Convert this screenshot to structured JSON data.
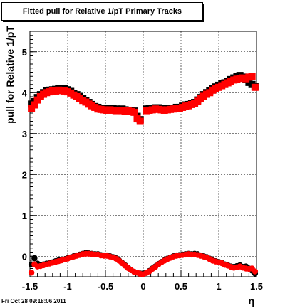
{
  "chart_data": {
    "type": "scatter",
    "title": "Fitted pull for Relative 1/pT  Primary Tracks",
    "xlabel": "η",
    "ylabel": "pull for Relative 1/pT",
    "xlim": [
      -1.5,
      1.5
    ],
    "ylim": [
      -0.5,
      5.5
    ],
    "x_ticks": [
      "-1.5",
      "-1",
      "-0.5",
      "0",
      "0.5",
      "1",
      "1.5"
    ],
    "y_ticks": [
      "0",
      "1",
      "2",
      "3",
      "4",
      "5"
    ],
    "grid": true,
    "footer": "Fri Oct 28 09:18:06 2011",
    "series": [
      {
        "marker": "square",
        "color": "#000000",
        "x": [
          -1.48,
          -1.44,
          -1.4,
          -1.36,
          -1.32,
          -1.28,
          -1.24,
          -1.2,
          -1.16,
          -1.12,
          -1.08,
          -1.04,
          -1.0,
          -0.96,
          -0.92,
          -0.88,
          -0.84,
          -0.8,
          -0.76,
          -0.72,
          -0.68,
          -0.64,
          -0.6,
          -0.56,
          -0.52,
          -0.48,
          -0.44,
          -0.4,
          -0.36,
          -0.32,
          -0.28,
          -0.24,
          -0.2,
          -0.16,
          -0.12,
          -0.08,
          -0.04,
          0.04,
          0.08,
          0.12,
          0.16,
          0.2,
          0.24,
          0.28,
          0.32,
          0.36,
          0.4,
          0.44,
          0.48,
          0.52,
          0.56,
          0.6,
          0.64,
          0.68,
          0.72,
          0.76,
          0.8,
          0.84,
          0.88,
          0.92,
          0.96,
          1.0,
          1.04,
          1.08,
          1.12,
          1.16,
          1.2,
          1.24,
          1.28,
          1.32,
          1.36,
          1.4,
          1.44,
          1.48
        ],
        "y": [
          3.72,
          3.78,
          3.88,
          3.95,
          4.0,
          4.04,
          4.06,
          4.07,
          4.08,
          4.1,
          4.09,
          4.1,
          4.07,
          4.03,
          3.98,
          3.95,
          3.9,
          3.85,
          3.8,
          3.76,
          3.71,
          3.66,
          3.64,
          3.62,
          3.6,
          3.61,
          3.6,
          3.61,
          3.6,
          3.59,
          3.6,
          3.58,
          3.57,
          3.56,
          3.55,
          3.42,
          3.34,
          3.6,
          3.61,
          3.61,
          3.63,
          3.63,
          3.62,
          3.61,
          3.61,
          3.62,
          3.62,
          3.64,
          3.64,
          3.67,
          3.7,
          3.71,
          3.74,
          3.76,
          3.82,
          3.88,
          3.95,
          4.0,
          4.04,
          4.1,
          4.14,
          4.18,
          4.22,
          4.24,
          4.28,
          4.32,
          4.36,
          4.4,
          4.42,
          4.38,
          4.32,
          4.25,
          4.2,
          4.15
        ]
      },
      {
        "marker": "square",
        "color": "#ff0000",
        "x": [
          -1.48,
          -1.44,
          -1.4,
          -1.36,
          -1.32,
          -1.28,
          -1.24,
          -1.2,
          -1.16,
          -1.12,
          -1.08,
          -1.04,
          -1.0,
          -0.96,
          -0.92,
          -0.88,
          -0.84,
          -0.8,
          -0.76,
          -0.72,
          -0.68,
          -0.64,
          -0.6,
          -0.56,
          -0.52,
          -0.48,
          -0.44,
          -0.4,
          -0.36,
          -0.32,
          -0.28,
          -0.24,
          -0.2,
          -0.16,
          -0.12,
          -0.08,
          -0.04,
          0.04,
          0.08,
          0.12,
          0.16,
          0.2,
          0.24,
          0.28,
          0.32,
          0.36,
          0.4,
          0.44,
          0.48,
          0.52,
          0.56,
          0.6,
          0.64,
          0.68,
          0.72,
          0.76,
          0.8,
          0.84,
          0.88,
          0.92,
          0.96,
          1.0,
          1.04,
          1.08,
          1.12,
          1.16,
          1.2,
          1.24,
          1.28,
          1.32,
          1.36,
          1.4,
          1.44,
          1.48
        ],
        "y": [
          3.62,
          3.7,
          3.82,
          3.9,
          3.96,
          4.0,
          4.02,
          4.04,
          4.04,
          4.06,
          4.05,
          4.04,
          4.02,
          3.99,
          3.94,
          3.9,
          3.86,
          3.81,
          3.77,
          3.72,
          3.68,
          3.64,
          3.6,
          3.59,
          3.58,
          3.57,
          3.58,
          3.57,
          3.56,
          3.57,
          3.56,
          3.55,
          3.56,
          3.54,
          3.52,
          3.36,
          3.3,
          3.56,
          3.57,
          3.58,
          3.6,
          3.59,
          3.58,
          3.57,
          3.58,
          3.59,
          3.6,
          3.61,
          3.62,
          3.64,
          3.67,
          3.68,
          3.71,
          3.73,
          3.79,
          3.85,
          3.91,
          3.96,
          4.0,
          4.06,
          4.1,
          4.13,
          4.17,
          4.2,
          4.24,
          4.28,
          4.31,
          4.33,
          4.35,
          4.36,
          4.34,
          4.38,
          4.4,
          4.13
        ]
      },
      {
        "marker": "circle",
        "color": "#000000",
        "x": [
          -1.48,
          -1.44,
          -1.4,
          -1.36,
          -1.32,
          -1.28,
          -1.24,
          -1.2,
          -1.16,
          -1.12,
          -1.08,
          -1.04,
          -1.0,
          -0.96,
          -0.92,
          -0.88,
          -0.84,
          -0.8,
          -0.76,
          -0.72,
          -0.68,
          -0.64,
          -0.6,
          -0.56,
          -0.52,
          -0.48,
          -0.44,
          -0.4,
          -0.36,
          -0.32,
          -0.28,
          -0.24,
          -0.2,
          -0.16,
          -0.12,
          -0.08,
          -0.04,
          0.0,
          0.04,
          0.08,
          0.12,
          0.16,
          0.2,
          0.24,
          0.28,
          0.32,
          0.36,
          0.4,
          0.44,
          0.48,
          0.52,
          0.56,
          0.6,
          0.64,
          0.68,
          0.72,
          0.76,
          0.8,
          0.84,
          0.88,
          0.92,
          0.96,
          1.0,
          1.04,
          1.08,
          1.12,
          1.16,
          1.2,
          1.24,
          1.28,
          1.32,
          1.36,
          1.4,
          1.44,
          1.48
        ],
        "y": [
          -0.2,
          -0.05,
          -0.18,
          -0.22,
          -0.2,
          -0.18,
          -0.17,
          -0.15,
          -0.12,
          -0.1,
          -0.09,
          -0.08,
          -0.05,
          -0.03,
          0.0,
          0.02,
          0.04,
          0.06,
          0.08,
          0.07,
          0.06,
          0.05,
          0.05,
          0.03,
          0.02,
          0.02,
          0.0,
          -0.02,
          -0.05,
          -0.1,
          -0.16,
          -0.22,
          -0.28,
          -0.34,
          -0.38,
          -0.4,
          -0.42,
          -0.42,
          -0.4,
          -0.36,
          -0.3,
          -0.25,
          -0.19,
          -0.14,
          -0.1,
          -0.06,
          -0.03,
          0.0,
          0.02,
          0.03,
          0.04,
          0.05,
          0.06,
          0.05,
          0.06,
          0.05,
          0.02,
          0.0,
          -0.02,
          -0.06,
          -0.1,
          -0.12,
          -0.14,
          -0.16,
          -0.2,
          -0.22,
          -0.25,
          -0.26,
          -0.24,
          -0.22,
          -0.26,
          -0.25,
          -0.3,
          -0.35,
          -0.42
        ]
      },
      {
        "marker": "circle",
        "color": "#ff0000",
        "x": [
          -1.48,
          -1.44,
          -1.4,
          -1.36,
          -1.32,
          -1.28,
          -1.24,
          -1.2,
          -1.16,
          -1.12,
          -1.08,
          -1.04,
          -1.0,
          -0.96,
          -0.92,
          -0.88,
          -0.84,
          -0.8,
          -0.76,
          -0.72,
          -0.68,
          -0.64,
          -0.6,
          -0.56,
          -0.52,
          -0.48,
          -0.44,
          -0.4,
          -0.36,
          -0.32,
          -0.28,
          -0.24,
          -0.2,
          -0.16,
          -0.12,
          -0.08,
          -0.04,
          0.0,
          0.04,
          0.08,
          0.12,
          0.16,
          0.2,
          0.24,
          0.28,
          0.32,
          0.36,
          0.4,
          0.44,
          0.48,
          0.52,
          0.56,
          0.6,
          0.64,
          0.68,
          0.72,
          0.76,
          0.8,
          0.84,
          0.88,
          0.92,
          0.96,
          1.0,
          1.04,
          1.08,
          1.12,
          1.16,
          1.2,
          1.24,
          1.28,
          1.32,
          1.36,
          1.4,
          1.44,
          1.48
        ],
        "y": [
          -0.4,
          -0.2,
          -0.25,
          -0.24,
          -0.22,
          -0.2,
          -0.18,
          -0.16,
          -0.14,
          -0.12,
          -0.1,
          -0.08,
          -0.06,
          -0.03,
          -0.01,
          0.01,
          0.03,
          0.05,
          0.06,
          0.06,
          0.05,
          0.04,
          0.04,
          0.02,
          0.01,
          0.01,
          -0.01,
          -0.03,
          -0.06,
          -0.11,
          -0.17,
          -0.23,
          -0.29,
          -0.34,
          -0.38,
          -0.4,
          -0.43,
          -0.44,
          -0.41,
          -0.37,
          -0.31,
          -0.26,
          -0.2,
          -0.15,
          -0.11,
          -0.07,
          -0.04,
          -0.01,
          0.01,
          0.02,
          0.03,
          0.04,
          0.05,
          0.04,
          0.04,
          0.03,
          0.01,
          -0.01,
          -0.03,
          -0.07,
          -0.11,
          -0.13,
          -0.15,
          -0.17,
          -0.21,
          -0.23,
          -0.26,
          -0.28,
          -0.27,
          -0.25,
          -0.28,
          -0.3,
          -0.31,
          -0.3,
          -0.37
        ]
      }
    ]
  }
}
